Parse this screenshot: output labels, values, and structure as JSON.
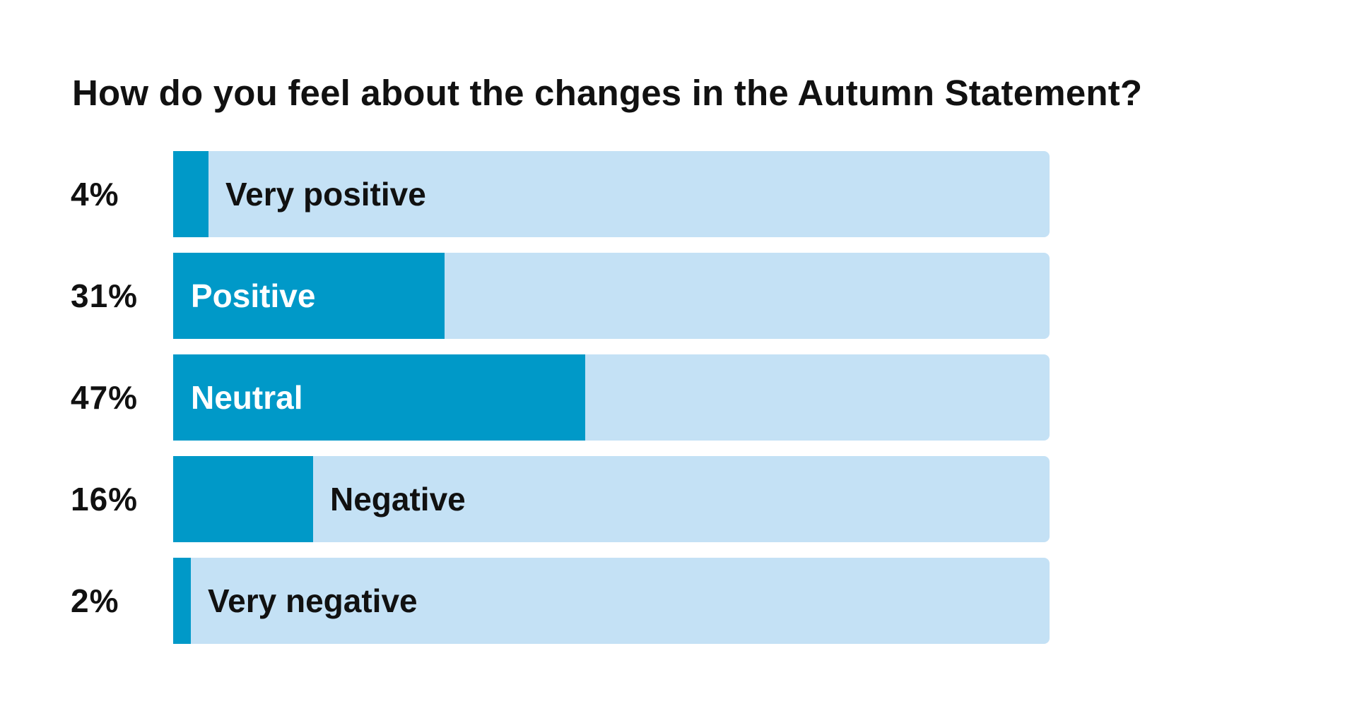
{
  "chart_data": {
    "type": "bar",
    "orientation": "horizontal",
    "title": "How do you feel about the changes in the Autumn Statement?",
    "categories": [
      "Very positive",
      "Positive",
      "Neutral",
      "Negative",
      "Very negative"
    ],
    "values": [
      4,
      31,
      47,
      16,
      2
    ],
    "value_labels": [
      "4%",
      "31%",
      "47%",
      "16%",
      "2%"
    ],
    "xlim": [
      0,
      100
    ],
    "colors": {
      "fill": "#0099c8",
      "track": "#c4e1f5",
      "text_inside": "#ffffff",
      "text_outside": "#111111"
    }
  }
}
